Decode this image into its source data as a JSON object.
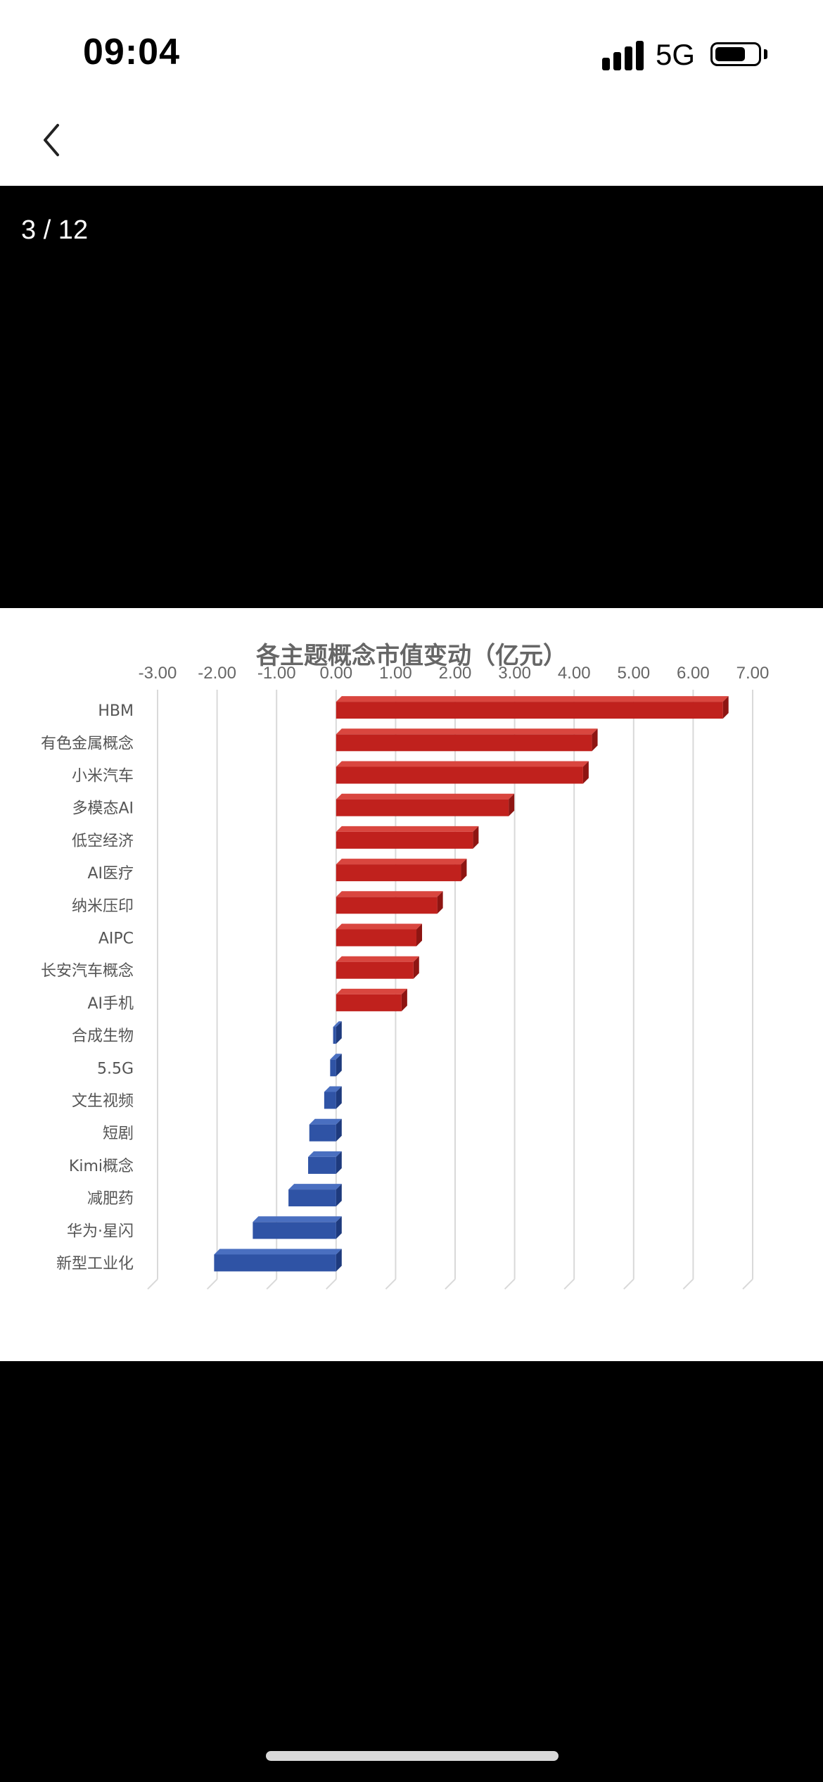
{
  "status_bar": {
    "time": "09:04",
    "network": "5G",
    "signal_bars": 4,
    "battery_level": 0.7
  },
  "nav": {
    "back_icon": "chevron-left-icon"
  },
  "viewer": {
    "page_counter": "3 / 12"
  },
  "chart_data": {
    "type": "bar",
    "orientation": "horizontal",
    "title": "各主题概念市值变动（亿元）",
    "xlabel": "",
    "ylabel": "",
    "xlim": [
      -3,
      7
    ],
    "x_ticks": [
      "-3.00",
      "-2.00",
      "-1.00",
      "0.00",
      "1.00",
      "2.00",
      "3.00",
      "4.00",
      "5.00",
      "6.00",
      "7.00"
    ],
    "grid": true,
    "legend": "none",
    "positive_color": "#c0211d",
    "negative_color": "#2f53a5",
    "categories": [
      "HBM",
      "有色金属概念",
      "小米汽车",
      "多模态AI",
      "低空经济",
      "AI医疗",
      "纳米压印",
      "AIPC",
      "长安汽车概念",
      "AI手机",
      "合成生物",
      "5.5G",
      "文生视频",
      "短剧",
      "Kimi概念",
      "减肥药",
      "华为·星闪",
      "新型工业化"
    ],
    "values": [
      6.5,
      4.3,
      4.15,
      2.9,
      2.3,
      2.1,
      1.7,
      1.35,
      1.3,
      1.1,
      -0.05,
      -0.1,
      -0.2,
      -0.45,
      -0.47,
      -0.8,
      -1.4,
      -2.05
    ]
  }
}
